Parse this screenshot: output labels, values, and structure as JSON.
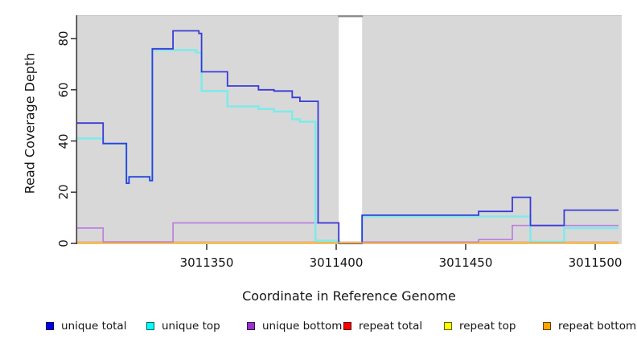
{
  "chart_data": {
    "type": "line",
    "line_style": "step-after",
    "title": "",
    "xlabel": "Coordinate in Reference Genome",
    "ylabel": "Read Coverage Depth",
    "x_ticks": [
      3011350,
      3011400,
      3011450,
      3011500
    ],
    "y_ticks": [
      0,
      20,
      40,
      60,
      80
    ],
    "x_range": [
      3011300,
      3011509
    ],
    "y_range": [
      0,
      89
    ],
    "grid": false,
    "legend_position": "bottom",
    "panel_background": "#d8d8d8",
    "masked_region": {
      "x_start": 3011401,
      "x_end": 3011410,
      "fill": "#ffffff",
      "border_top": "#8c8c8c"
    },
    "draw_order": [
      "repeat total",
      "repeat top",
      "unique bottom",
      "unique top",
      "unique total",
      "repeat bottom"
    ],
    "series": [
      {
        "name": "unique total",
        "color": "#3a3ad8",
        "width": 1.8,
        "points": [
          [
            3011300,
            47
          ],
          [
            3011310,
            39
          ],
          [
            3011319,
            23.5
          ],
          [
            3011320,
            26
          ],
          [
            3011328,
            24.5
          ],
          [
            3011329,
            76
          ],
          [
            3011337,
            83
          ],
          [
            3011347,
            82
          ],
          [
            3011348,
            67
          ],
          [
            3011358,
            61.5
          ],
          [
            3011370,
            60
          ],
          [
            3011376,
            59.5
          ],
          [
            3011383,
            57
          ],
          [
            3011386,
            55.5
          ],
          [
            3011393,
            8
          ],
          [
            3011401,
            0
          ],
          [
            3011410,
            11
          ],
          [
            3011455,
            12.5
          ],
          [
            3011468,
            18
          ],
          [
            3011475,
            7
          ],
          [
            3011488,
            13
          ],
          [
            3011509,
            13
          ]
        ]
      },
      {
        "name": "unique top",
        "color": "#82e9e9",
        "width": 2.6,
        "points": [
          [
            3011300,
            41
          ],
          [
            3011310,
            39
          ],
          [
            3011319,
            23.5
          ],
          [
            3011320,
            26
          ],
          [
            3011328,
            24.5
          ],
          [
            3011329,
            75.5
          ],
          [
            3011346,
            74.5
          ],
          [
            3011348,
            59.5
          ],
          [
            3011358,
            53.5
          ],
          [
            3011370,
            52.5
          ],
          [
            3011376,
            51.5
          ],
          [
            3011383,
            48.5
          ],
          [
            3011386,
            47.5
          ],
          [
            3011392,
            1
          ],
          [
            3011401,
            0
          ],
          [
            3011410,
            10.5
          ],
          [
            3011475,
            0.6
          ],
          [
            3011488,
            6
          ],
          [
            3011509,
            6
          ]
        ]
      },
      {
        "name": "unique bottom",
        "color": "#bb80de",
        "width": 1.7,
        "points": [
          [
            3011300,
            6
          ],
          [
            3011310,
            0.6
          ],
          [
            3011337,
            8
          ],
          [
            3011401,
            0
          ],
          [
            3011410,
            0.5
          ],
          [
            3011455,
            1.5
          ],
          [
            3011468,
            7
          ],
          [
            3011509,
            7
          ]
        ]
      },
      {
        "name": "repeat total",
        "color": "#e0607f",
        "width": 1.4,
        "points": [
          [
            3011300,
            0.5
          ],
          [
            3011509,
            0.5
          ]
        ]
      },
      {
        "name": "repeat top",
        "color": "#f0f060",
        "width": 1.4,
        "points": [
          [
            3011300,
            0.4
          ],
          [
            3011509,
            0.4
          ]
        ]
      },
      {
        "name": "repeat bottom",
        "color": "#ffa428",
        "width": 1.8,
        "points": [
          [
            3011300,
            0.2
          ],
          [
            3011509,
            0.2
          ]
        ]
      }
    ]
  },
  "legend": {
    "items": [
      {
        "label": "unique total",
        "color": "#0000e6"
      },
      {
        "label": "unique top",
        "color": "#00ffff"
      },
      {
        "label": "unique bottom",
        "color": "#9932cc"
      },
      {
        "label": "repeat total",
        "color": "#ff0000"
      },
      {
        "label": "repeat top",
        "color": "#ffff00"
      },
      {
        "label": "repeat bottom",
        "color": "#ffa500"
      }
    ]
  }
}
